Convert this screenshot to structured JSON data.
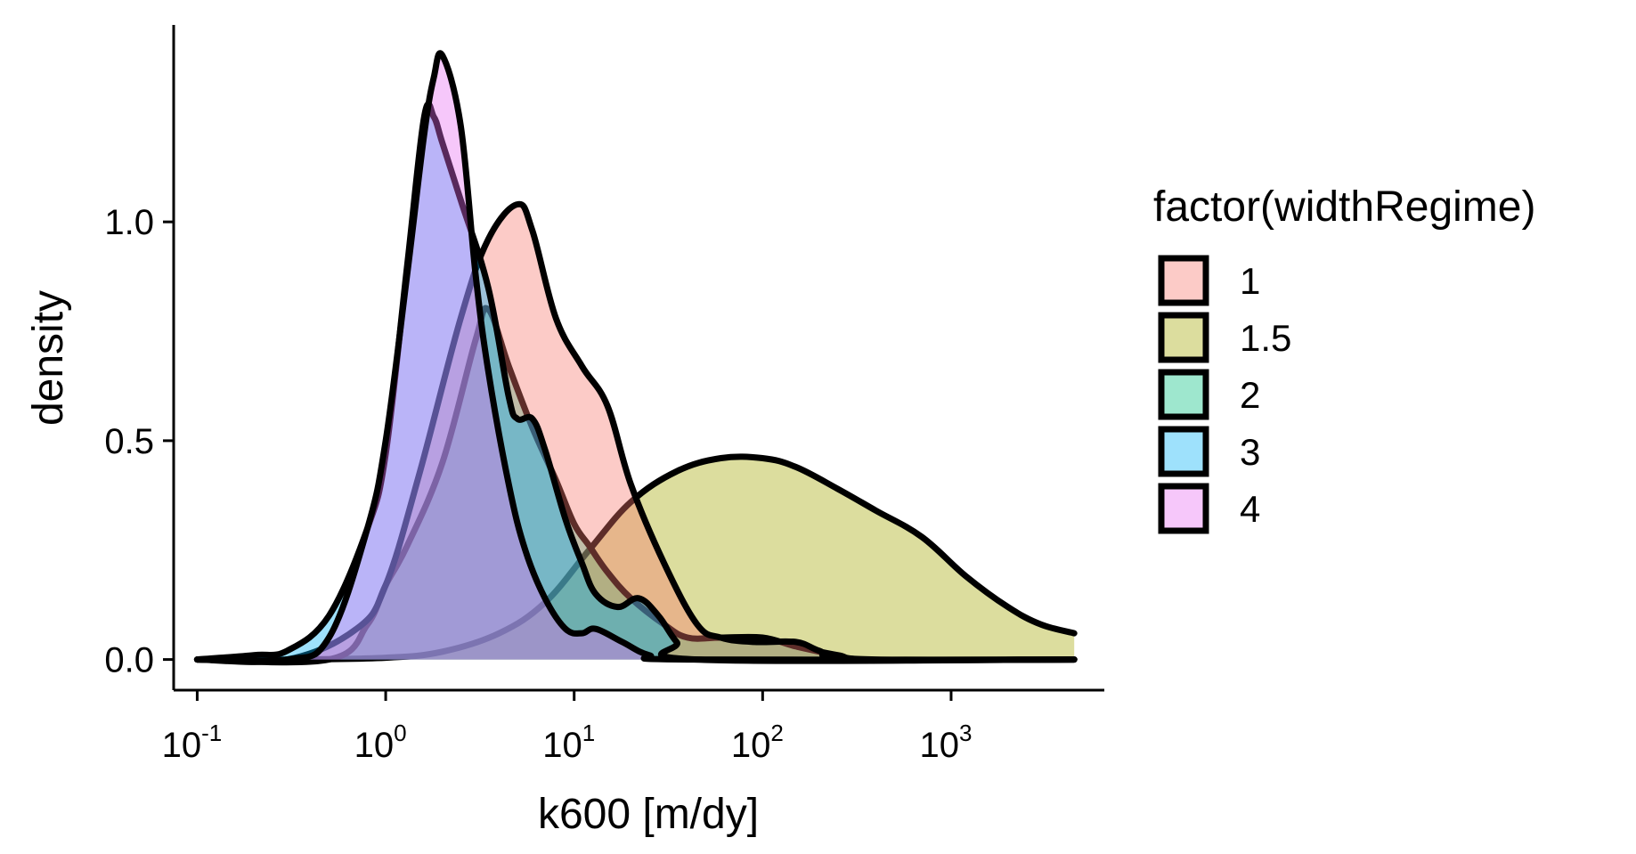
{
  "chart_data": {
    "type": "area",
    "xlabel": "k600 [m/dy]",
    "ylabel": "density",
    "x_scale": "log10",
    "xlim": [
      0.075,
      6500
    ],
    "ylim": [
      -0.07,
      1.45
    ],
    "x_ticks": [
      {
        "value": 0.1,
        "base": "10",
        "exp": "-1"
      },
      {
        "value": 1,
        "base": "10",
        "exp": "0"
      },
      {
        "value": 10,
        "base": "10",
        "exp": "1"
      },
      {
        "value": 100,
        "base": "10",
        "exp": "2"
      },
      {
        "value": 1000,
        "base": "10",
        "exp": "3"
      }
    ],
    "y_ticks": [
      {
        "value": 0.0,
        "label": "0.0"
      },
      {
        "value": 0.5,
        "label": "0.5"
      },
      {
        "value": 1.0,
        "label": "1.0"
      }
    ],
    "grid": false,
    "legend": {
      "title": "factor(widthRegime)",
      "placement": "right"
    },
    "series": [
      {
        "name": "1.5",
        "color": "#A3A500",
        "points": [
          [
            0.1,
            0.0
          ],
          [
            0.3,
            0.0
          ],
          [
            1,
            0.004
          ],
          [
            2,
            0.018
          ],
          [
            4,
            0.06
          ],
          [
            7,
            0.13
          ],
          [
            12,
            0.25
          ],
          [
            20,
            0.36
          ],
          [
            35,
            0.43
          ],
          [
            60,
            0.46
          ],
          [
            100,
            0.46
          ],
          [
            150,
            0.44
          ],
          [
            250,
            0.39
          ],
          [
            400,
            0.34
          ],
          [
            700,
            0.28
          ],
          [
            1200,
            0.19
          ],
          [
            2000,
            0.12
          ],
          [
            3000,
            0.08
          ],
          [
            4500,
            0.06
          ]
        ]
      },
      {
        "name": "2",
        "color": "#00BF7D",
        "points": [
          [
            0.1,
            0.0
          ],
          [
            0.5,
            0.0
          ],
          [
            0.8,
            0.08
          ],
          [
            1,
            0.17
          ],
          [
            1.3,
            0.26
          ],
          [
            2,
            0.45
          ],
          [
            3,
            0.73
          ],
          [
            3.5,
            0.8
          ],
          [
            4.5,
            0.67
          ],
          [
            6,
            0.53
          ],
          [
            8,
            0.41
          ],
          [
            10,
            0.31
          ],
          [
            12,
            0.26
          ],
          [
            15,
            0.2
          ],
          [
            20,
            0.14
          ],
          [
            30,
            0.08
          ],
          [
            40,
            0.05
          ],
          [
            60,
            0.05
          ],
          [
            100,
            0.05
          ],
          [
            150,
            0.03
          ],
          [
            250,
            0.01
          ],
          [
            400,
            0.0
          ],
          [
            4500,
            0.0
          ]
        ]
      },
      {
        "name": "1",
        "color": "#F8766D",
        "points": [
          [
            0.1,
            0.0
          ],
          [
            0.3,
            0.0
          ],
          [
            0.7,
            0.07
          ],
          [
            1,
            0.17
          ],
          [
            1.5,
            0.42
          ],
          [
            2.5,
            0.78
          ],
          [
            3.5,
            0.96
          ],
          [
            5,
            1.04
          ],
          [
            6,
            0.98
          ],
          [
            8,
            0.78
          ],
          [
            11,
            0.67
          ],
          [
            15,
            0.58
          ],
          [
            20,
            0.4
          ],
          [
            30,
            0.22
          ],
          [
            45,
            0.08
          ],
          [
            60,
            0.05
          ],
          [
            90,
            0.04
          ],
          [
            150,
            0.04
          ],
          [
            200,
            0.02
          ],
          [
            300,
            0.0
          ],
          [
            4500,
            0.0
          ]
        ]
      },
      {
        "name": "3",
        "color": "#00B0F6",
        "points": [
          [
            0.1,
            0.0
          ],
          [
            0.2,
            0.01
          ],
          [
            0.3,
            0.02
          ],
          [
            0.5,
            0.1
          ],
          [
            0.8,
            0.3
          ],
          [
            1,
            0.47
          ],
          [
            1.3,
            0.9
          ],
          [
            1.6,
            1.24
          ],
          [
            1.8,
            1.24
          ],
          [
            2,
            1.18
          ],
          [
            2.5,
            1.05
          ],
          [
            3.5,
            0.85
          ],
          [
            4.5,
            0.6
          ],
          [
            5,
            0.55
          ],
          [
            6,
            0.55
          ],
          [
            7,
            0.48
          ],
          [
            9,
            0.32
          ],
          [
            11,
            0.22
          ],
          [
            13,
            0.15
          ],
          [
            17,
            0.12
          ],
          [
            22,
            0.14
          ],
          [
            28,
            0.1
          ],
          [
            35,
            0.04
          ],
          [
            45,
            0.0
          ],
          [
            4500,
            0.0
          ]
        ]
      },
      {
        "name": "4",
        "color": "#E76BF3",
        "points": [
          [
            0.1,
            0.0
          ],
          [
            0.3,
            0.0
          ],
          [
            0.5,
            0.05
          ],
          [
            0.8,
            0.3
          ],
          [
            1,
            0.5
          ],
          [
            1.3,
            0.88
          ],
          [
            1.6,
            1.2
          ],
          [
            1.8,
            1.33
          ],
          [
            2,
            1.38
          ],
          [
            2.5,
            1.22
          ],
          [
            3,
            0.88
          ],
          [
            3.5,
            0.66
          ],
          [
            4.5,
            0.4
          ],
          [
            5.5,
            0.25
          ],
          [
            7,
            0.14
          ],
          [
            9,
            0.07
          ],
          [
            11,
            0.06
          ],
          [
            13,
            0.07
          ],
          [
            18,
            0.04
          ],
          [
            25,
            0.01
          ],
          [
            40,
            0.0
          ],
          [
            4500,
            0.0
          ]
        ]
      }
    ]
  }
}
